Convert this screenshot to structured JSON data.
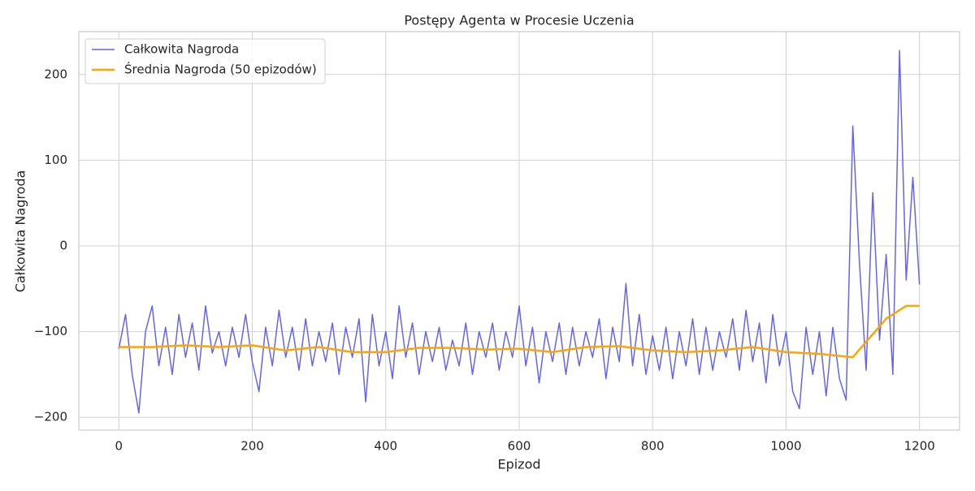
{
  "chart_data": {
    "type": "line",
    "title": "Postępy Agenta w Procesie Uczenia",
    "xlabel": "Epizod",
    "ylabel": "Całkowita Nagroda",
    "xlim": [
      -60,
      1260
    ],
    "ylim": [
      -215,
      250
    ],
    "xticks": [
      0,
      200,
      400,
      600,
      800,
      1000,
      1200
    ],
    "yticks": [
      {
        "value": -200,
        "label": "−200"
      },
      {
        "value": -100,
        "label": "−100"
      },
      0,
      100,
      200
    ],
    "grid": true,
    "legend": "upper left",
    "series": [
      {
        "name": "Całkowita Nagroda",
        "color": "#6464f0",
        "x": [
          0,
          10,
          20,
          30,
          40,
          50,
          60,
          70,
          80,
          90,
          100,
          110,
          120,
          130,
          140,
          150,
          160,
          170,
          180,
          190,
          200,
          210,
          220,
          230,
          240,
          250,
          260,
          270,
          280,
          290,
          300,
          310,
          320,
          330,
          340,
          350,
          360,
          370,
          380,
          390,
          400,
          410,
          420,
          430,
          440,
          450,
          460,
          470,
          480,
          490,
          500,
          510,
          520,
          530,
          540,
          550,
          560,
          570,
          580,
          590,
          600,
          610,
          620,
          630,
          640,
          650,
          660,
          670,
          680,
          690,
          700,
          710,
          720,
          730,
          740,
          750,
          760,
          770,
          780,
          790,
          800,
          810,
          820,
          830,
          840,
          850,
          860,
          870,
          880,
          890,
          900,
          910,
          920,
          930,
          940,
          950,
          960,
          970,
          980,
          990,
          1000,
          1010,
          1020,
          1030,
          1040,
          1050,
          1060,
          1070,
          1080,
          1090,
          1100,
          1110,
          1120,
          1130,
          1140,
          1150,
          1160,
          1170,
          1180,
          1190,
          1200
        ],
        "values": [
          -120,
          -80,
          -150,
          -195,
          -100,
          -70,
          -140,
          -95,
          -150,
          -80,
          -130,
          -90,
          -145,
          -70,
          -125,
          -100,
          -140,
          -95,
          -130,
          -80,
          -135,
          -170,
          -95,
          -140,
          -75,
          -130,
          -95,
          -145,
          -85,
          -140,
          -100,
          -135,
          -90,
          -150,
          -95,
          -130,
          -85,
          -182,
          -80,
          -140,
          -100,
          -155,
          -70,
          -130,
          -90,
          -150,
          -100,
          -135,
          -95,
          -145,
          -110,
          -140,
          -90,
          -150,
          -100,
          -130,
          -90,
          -145,
          -100,
          -130,
          -70,
          -140,
          -95,
          -160,
          -100,
          -135,
          -90,
          -150,
          -95,
          -140,
          -100,
          -130,
          -85,
          -155,
          -95,
          -135,
          -44,
          -140,
          -80,
          -150,
          -105,
          -145,
          -95,
          -155,
          -100,
          -140,
          -85,
          -150,
          -95,
          -145,
          -100,
          -130,
          -85,
          -145,
          -75,
          -135,
          -90,
          -160,
          -80,
          -140,
          -100,
          -170,
          -190,
          -95,
          -150,
          -100,
          -175,
          -95,
          -155,
          -180,
          140,
          -20,
          -145,
          62,
          -110,
          -10,
          -150,
          228,
          -40,
          80,
          -45
        ]
      },
      {
        "name": "Średnia Nagroda (50 epizodów)",
        "color": "#ffa500",
        "x": [
          0,
          50,
          100,
          150,
          200,
          250,
          300,
          350,
          400,
          450,
          500,
          550,
          600,
          650,
          700,
          750,
          800,
          850,
          900,
          950,
          1000,
          1050,
          1100,
          1150,
          1180,
          1200
        ],
        "values": [
          -118,
          -118,
          -116,
          -118,
          -116,
          -122,
          -118,
          -124,
          -124,
          -119,
          -119,
          -121,
          -120,
          -124,
          -118,
          -117,
          -122,
          -124,
          -122,
          -118,
          -124,
          -126,
          -130,
          -85,
          -70,
          -70
        ]
      }
    ]
  }
}
